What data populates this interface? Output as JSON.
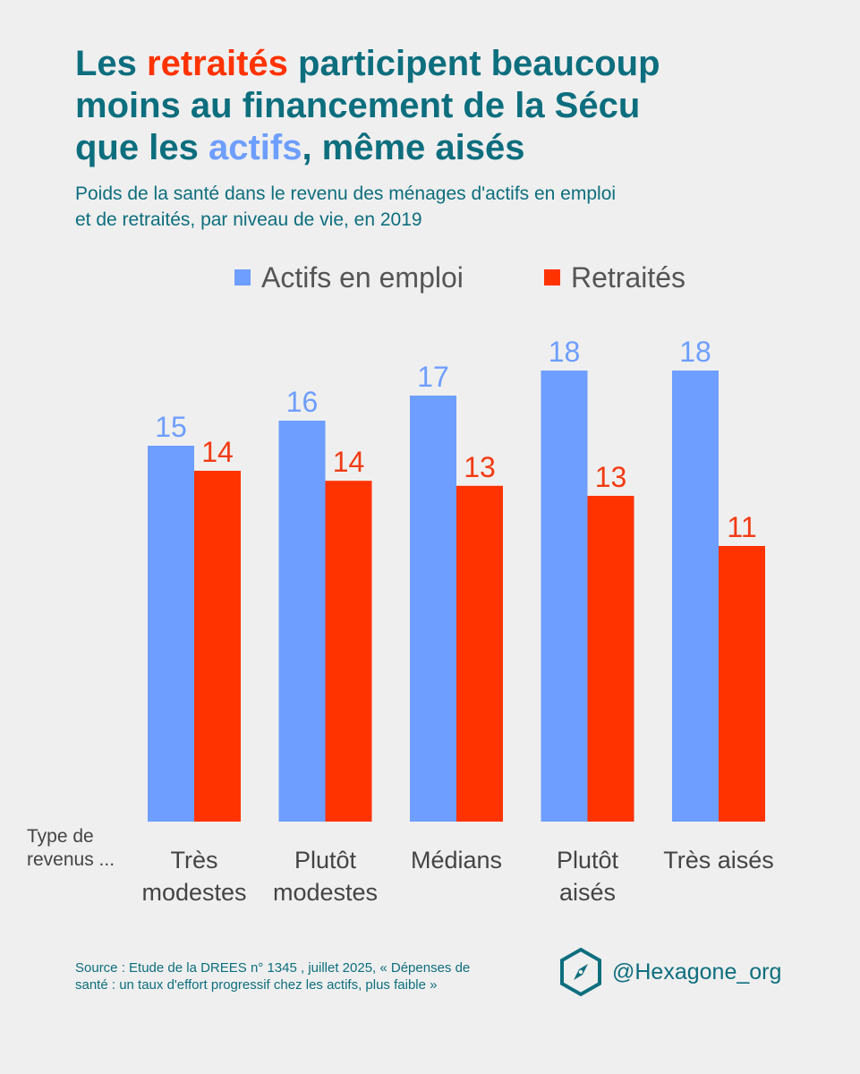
{
  "header": {
    "title_line1": {
      "a": "Les ",
      "b": "retraités",
      "c": " participent beaucoup"
    },
    "title_line2": "moins au financement de la Sécu",
    "title_line3": {
      "a": "que les ",
      "b": "actifs",
      "c": ", même aisés"
    },
    "subtitle_line1": "Poids de la santé dans le revenu des ménages d'actifs en emploi",
    "subtitle_line2": "et de retraités, par niveau de vie, en 2019"
  },
  "axis_prefix": {
    "line1": "Type de",
    "line2": "revenus ..."
  },
  "footer": {
    "source_line1": "Source : Etude de la DREES n° 1345 , juillet 2025, « Dépenses de",
    "source_line2": "santé : un taux d'effort progressif chez les actifs, plus faible »",
    "brand": "@Hexagone_org",
    "brand_icon": "hexagon-compass-icon"
  },
  "colors": {
    "actifs": "#6e9eff",
    "retraites": "#ff3300",
    "title": "#0d6e7e",
    "background": "#efefef"
  },
  "chart_data": {
    "type": "bar",
    "categories": [
      [
        "Très",
        "modestes"
      ],
      [
        "Plutôt",
        "modestes"
      ],
      [
        "Médians"
      ],
      [
        "Plutôt",
        "aisés"
      ],
      [
        "Très aisés"
      ]
    ],
    "series": [
      {
        "name": "Actifs en emploi",
        "values": [
          15,
          16,
          17,
          18,
          18
        ]
      },
      {
        "name": "Retraités",
        "values": [
          14,
          14,
          13,
          13,
          11
        ]
      }
    ],
    "plotted_values": {
      "actifs": [
        15.0,
        16.0,
        17.0,
        18.0,
        18.0
      ],
      "retraites": [
        14.0,
        13.6,
        13.4,
        13.0,
        11.0
      ]
    },
    "ylim": [
      0,
      18
    ],
    "legend_position": "top",
    "grid": false
  }
}
